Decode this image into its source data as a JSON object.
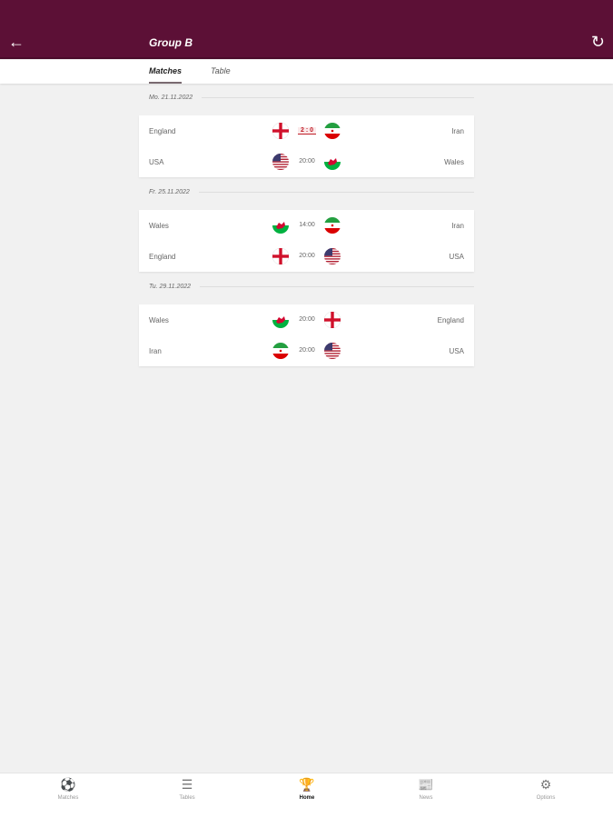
{
  "header": {
    "title": "Group B",
    "back_icon": "arrow-left-icon",
    "refresh_icon": "refresh-icon",
    "color": "#5c1036"
  },
  "tabs": [
    {
      "label": "Matches",
      "active": true
    },
    {
      "label": "Table",
      "active": false
    }
  ],
  "days": [
    {
      "date": "Mo. 21.11.2022",
      "matches": [
        {
          "home": "England",
          "home_flag": "eng",
          "center": "2 : 0",
          "is_score": true,
          "away": "Iran",
          "away_flag": "irn"
        },
        {
          "home": "USA",
          "home_flag": "usa",
          "center": "20:00",
          "is_score": false,
          "away": "Wales",
          "away_flag": "wal"
        }
      ]
    },
    {
      "date": "Fr. 25.11.2022",
      "matches": [
        {
          "home": "Wales",
          "home_flag": "wal",
          "center": "14:00",
          "is_score": false,
          "away": "Iran",
          "away_flag": "irn"
        },
        {
          "home": "England",
          "home_flag": "eng",
          "center": "20:00",
          "is_score": false,
          "away": "USA",
          "away_flag": "usa"
        }
      ]
    },
    {
      "date": "Tu. 29.11.2022",
      "matches": [
        {
          "home": "Wales",
          "home_flag": "wal",
          "center": "20:00",
          "is_score": false,
          "away": "England",
          "away_flag": "eng"
        },
        {
          "home": "Iran",
          "home_flag": "irn",
          "center": "20:00",
          "is_score": false,
          "away": "USA",
          "away_flag": "usa"
        }
      ]
    }
  ],
  "nav": [
    {
      "label": "Matches",
      "icon": "soccer-ball-icon",
      "active": false
    },
    {
      "label": "Tables",
      "icon": "list-icon",
      "active": false
    },
    {
      "label": "Home",
      "icon": "trophy-icon",
      "active": true
    },
    {
      "label": "News",
      "icon": "newspaper-icon",
      "active": false
    },
    {
      "label": "Options",
      "icon": "gear-icon",
      "active": false
    }
  ]
}
